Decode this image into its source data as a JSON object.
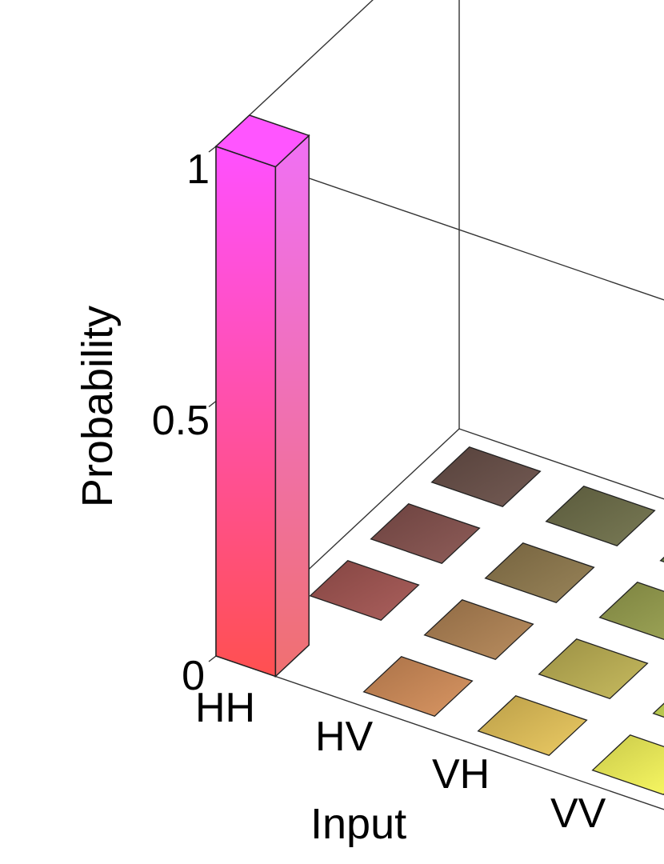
{
  "chart_data": {
    "type": "bar3d",
    "title": "",
    "zlabel": "Probability",
    "xlabel": "Input",
    "zlim": [
      0,
      1
    ],
    "z_ticks": [
      "0",
      "0.5",
      "1"
    ],
    "x_categories": [
      "HH",
      "HV",
      "VH",
      "VV"
    ],
    "y_categories": [
      "",
      "",
      "",
      ""
    ],
    "values": [
      [
        1.0,
        0.0,
        0.0,
        0.0
      ],
      [
        0.0,
        0.0,
        0.0,
        0.0
      ],
      [
        0.0,
        0.0,
        0.0,
        0.0
      ],
      [
        0.0,
        0.0,
        0.0,
        0.0
      ]
    ],
    "colors": {
      "bar_top": "#ff55ff",
      "bar_bottom": "#ff5555",
      "tile_row_hh": "#c05050",
      "tile_row_vv": "#ffff55"
    }
  }
}
